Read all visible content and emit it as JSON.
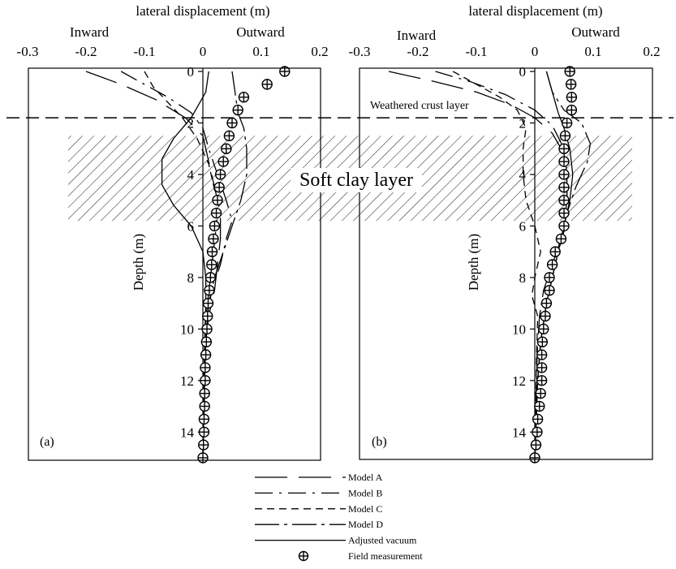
{
  "chart_data": [
    {
      "type": "line",
      "panel_label": "(a)",
      "title": "lateral displacement (m)",
      "direction_labels": {
        "left": "Inward",
        "right": "Outward"
      },
      "xlabel": "lateral displacement (m)",
      "ylabel": "Depth (m)",
      "xlim": [
        -0.3,
        0.2
      ],
      "ylim": [
        0,
        15
      ],
      "y_inverted": true,
      "x_ticks": [
        "-0.3",
        "-0.2",
        "-0.1",
        "0",
        "0.1",
        "0.2"
      ],
      "y_ticks": [
        "0",
        "2",
        "4",
        "6",
        "8",
        "10",
        "12",
        "14"
      ],
      "band": {
        "label": "Soft clay layer",
        "y_range": [
          2.5,
          5.8
        ]
      },
      "crust_line_depth": 1.8,
      "series": [
        {
          "name": "Model A",
          "dash": "long-dash",
          "points": [
            [
              -0.2,
              0
            ],
            [
              -0.14,
              0.5
            ],
            [
              -0.08,
              1.1
            ],
            [
              -0.03,
              1.8
            ],
            [
              0.0,
              2.5
            ],
            [
              0.01,
              3.5
            ],
            [
              0.02,
              4.5
            ],
            [
              0.03,
              5.5
            ],
            [
              0.03,
              6.5
            ],
            [
              0.025,
              7.5
            ],
            [
              0.02,
              8.5
            ],
            [
              0.01,
              9.5
            ],
            [
              0.005,
              10.5
            ],
            [
              0.003,
              12
            ],
            [
              0.002,
              13.5
            ],
            [
              0.0,
              15
            ]
          ]
        },
        {
          "name": "Model B",
          "dash": "dash-dot",
          "points": [
            [
              -0.14,
              0
            ],
            [
              -0.1,
              0.5
            ],
            [
              -0.06,
              1.0
            ],
            [
              -0.02,
              1.6
            ],
            [
              0.0,
              2.2
            ],
            [
              0.01,
              3.0
            ],
            [
              0.025,
              4.0
            ],
            [
              0.04,
              5.0
            ],
            [
              0.05,
              5.8
            ],
            [
              0.04,
              6.5
            ],
            [
              0.03,
              7.5
            ],
            [
              0.015,
              8.5
            ],
            [
              0.008,
              9.5
            ],
            [
              0.004,
              11
            ],
            [
              0.002,
              13
            ],
            [
              0.0,
              15
            ]
          ]
        },
        {
          "name": "Model C",
          "dash": "short-dash",
          "points": [
            [
              -0.1,
              0
            ],
            [
              -0.085,
              0.6
            ],
            [
              -0.06,
              1.2
            ],
            [
              -0.035,
              1.8
            ],
            [
              -0.01,
              2.6
            ],
            [
              0.01,
              3.6
            ],
            [
              0.02,
              4.6
            ],
            [
              0.025,
              5.6
            ],
            [
              0.02,
              6.6
            ],
            [
              0.015,
              7.6
            ],
            [
              0.01,
              8.6
            ],
            [
              0.005,
              9.6
            ],
            [
              0.003,
              11
            ],
            [
              0.001,
              13
            ],
            [
              0.0,
              15
            ]
          ]
        },
        {
          "name": "Model D",
          "dash": "dash-dot-long",
          "points": [
            [
              0.05,
              0
            ],
            [
              0.055,
              0.8
            ],
            [
              0.06,
              1.6
            ],
            [
              0.07,
              2.2
            ],
            [
              0.075,
              3.0
            ],
            [
              0.075,
              4.0
            ],
            [
              0.065,
              5.0
            ],
            [
              0.05,
              6.0
            ],
            [
              0.035,
              7.0
            ],
            [
              0.02,
              8.0
            ],
            [
              0.01,
              9.0
            ],
            [
              0.005,
              10.5
            ],
            [
              0.002,
              12.5
            ],
            [
              0.0,
              15
            ]
          ]
        },
        {
          "name": "Adjusted vacuum",
          "dash": "solid",
          "points": [
            [
              0.01,
              0
            ],
            [
              0.005,
              0.8
            ],
            [
              -0.02,
              1.8
            ],
            [
              -0.05,
              2.6
            ],
            [
              -0.07,
              3.4
            ],
            [
              -0.07,
              4.4
            ],
            [
              -0.05,
              5.2
            ],
            [
              -0.02,
              6.0
            ],
            [
              0.0,
              7.0
            ],
            [
              0.005,
              8.0
            ],
            [
              0.005,
              9.0
            ],
            [
              0.003,
              10.5
            ],
            [
              0.001,
              12.5
            ],
            [
              0.0,
              15
            ]
          ]
        }
      ],
      "field_measurement": [
        [
          0.14,
          0
        ],
        [
          0.11,
          0.5
        ],
        [
          0.07,
          1.0
        ],
        [
          0.06,
          1.5
        ],
        [
          0.05,
          2.0
        ],
        [
          0.045,
          2.5
        ],
        [
          0.04,
          3.0
        ],
        [
          0.035,
          3.5
        ],
        [
          0.03,
          4.0
        ],
        [
          0.028,
          4.5
        ],
        [
          0.025,
          5.0
        ],
        [
          0.023,
          5.5
        ],
        [
          0.02,
          6.0
        ],
        [
          0.018,
          6.5
        ],
        [
          0.016,
          7.0
        ],
        [
          0.015,
          7.5
        ],
        [
          0.013,
          8.0
        ],
        [
          0.011,
          8.5
        ],
        [
          0.009,
          9.0
        ],
        [
          0.008,
          9.5
        ],
        [
          0.007,
          10.0
        ],
        [
          0.006,
          10.5
        ],
        [
          0.005,
          11.0
        ],
        [
          0.004,
          11.5
        ],
        [
          0.004,
          12.0
        ],
        [
          0.003,
          12.5
        ],
        [
          0.003,
          13.0
        ],
        [
          0.002,
          13.5
        ],
        [
          0.002,
          14.0
        ],
        [
          0.001,
          14.5
        ],
        [
          0.0,
          15.0
        ]
      ]
    },
    {
      "type": "line",
      "panel_label": "(b)",
      "title": "lateral displacement (m)",
      "direction_labels": {
        "left": "Inward",
        "right": "Outward"
      },
      "xlabel": "lateral displacement (m)",
      "ylabel": "Depth (m)",
      "xlim": [
        -0.3,
        0.2
      ],
      "ylim": [
        0,
        15
      ],
      "y_inverted": true,
      "x_ticks": [
        "-0.3",
        "-0.2",
        "-0.1",
        "0",
        "0.1",
        "0.2"
      ],
      "y_ticks": [
        "0",
        "2",
        "4",
        "6",
        "8",
        "10",
        "12",
        "14"
      ],
      "band": {
        "label": "Soft clay layer",
        "y_range": [
          2.5,
          5.8
        ]
      },
      "crust_line_depth": 1.8,
      "crust_label": "Weathered crust layer",
      "series": [
        {
          "name": "Model A",
          "dash": "long-dash",
          "points": [
            [
              -0.25,
              0
            ],
            [
              -0.17,
              0.4
            ],
            [
              -0.1,
              0.8
            ],
            [
              -0.04,
              1.3
            ],
            [
              0.0,
              1.8
            ],
            [
              0.03,
              2.4
            ],
            [
              0.05,
              3.2
            ],
            [
              0.055,
              4.2
            ],
            [
              0.055,
              5.2
            ],
            [
              0.05,
              6.2
            ],
            [
              0.04,
              7.0
            ],
            [
              0.03,
              8.0
            ],
            [
              0.02,
              9.0
            ],
            [
              0.01,
              10.5
            ],
            [
              0.005,
              12
            ],
            [
              0.0,
              15
            ]
          ]
        },
        {
          "name": "Model B",
          "dash": "dash-dot",
          "points": [
            [
              -0.17,
              0
            ],
            [
              -0.11,
              0.4
            ],
            [
              -0.05,
              0.9
            ],
            [
              0.0,
              1.5
            ],
            [
              0.03,
              2.1
            ],
            [
              0.05,
              3.0
            ],
            [
              0.055,
              4.0
            ],
            [
              0.055,
              5.0
            ],
            [
              0.05,
              6.0
            ],
            [
              0.04,
              7.0
            ],
            [
              0.03,
              8.0
            ],
            [
              0.02,
              9.0
            ],
            [
              0.01,
              10.5
            ],
            [
              0.005,
              12
            ],
            [
              0.0,
              15
            ]
          ]
        },
        {
          "name": "Model C",
          "dash": "short-dash",
          "points": [
            [
              -0.14,
              0
            ],
            [
              -0.1,
              0.5
            ],
            [
              -0.06,
              1.0
            ],
            [
              -0.03,
              1.5
            ],
            [
              -0.015,
              2.2
            ],
            [
              -0.02,
              3.0
            ],
            [
              -0.02,
              4.0
            ],
            [
              -0.015,
              5.0
            ],
            [
              0.0,
              6.0
            ],
            [
              0.01,
              7.0
            ],
            [
              0.0,
              8.0
            ],
            [
              -0.005,
              8.7
            ],
            [
              0.005,
              9.5
            ],
            [
              0.003,
              11
            ],
            [
              0.0,
              15
            ]
          ]
        },
        {
          "name": "Model D",
          "dash": "dash-dot-long",
          "points": [
            [
              0.02,
              0
            ],
            [
              0.03,
              0.8
            ],
            [
              0.05,
              1.5
            ],
            [
              0.08,
              2.0
            ],
            [
              0.095,
              2.8
            ],
            [
              0.09,
              3.5
            ],
            [
              0.07,
              4.5
            ],
            [
              0.055,
              5.5
            ],
            [
              0.045,
              6.5
            ],
            [
              0.03,
              7.5
            ],
            [
              0.015,
              8.5
            ],
            [
              0.008,
              9.5
            ],
            [
              0.004,
              11
            ],
            [
              0.0,
              15
            ]
          ]
        },
        {
          "name": "Adjusted vacuum",
          "dash": "solid",
          "points": [
            [
              0.02,
              0
            ],
            [
              0.03,
              0.8
            ],
            [
              0.04,
              1.6
            ],
            [
              0.05,
              2.2
            ],
            [
              0.06,
              3.0
            ],
            [
              0.065,
              4.0
            ],
            [
              0.06,
              5.0
            ],
            [
              0.05,
              6.0
            ],
            [
              0.04,
              7.0
            ],
            [
              0.03,
              8.0
            ],
            [
              0.02,
              9.0
            ],
            [
              0.01,
              10.5
            ],
            [
              0.005,
              12
            ],
            [
              0.0,
              15
            ]
          ]
        }
      ],
      "field_measurement": [
        [
          0.06,
          0
        ],
        [
          0.062,
          0.5
        ],
        [
          0.063,
          1.0
        ],
        [
          0.063,
          1.5
        ],
        [
          0.055,
          2.0
        ],
        [
          0.052,
          2.5
        ],
        [
          0.05,
          3.0
        ],
        [
          0.05,
          3.5
        ],
        [
          0.05,
          4.0
        ],
        [
          0.05,
          4.5
        ],
        [
          0.05,
          5.0
        ],
        [
          0.05,
          5.5
        ],
        [
          0.05,
          6.0
        ],
        [
          0.045,
          6.5
        ],
        [
          0.035,
          7.0
        ],
        [
          0.03,
          7.5
        ],
        [
          0.025,
          8.0
        ],
        [
          0.025,
          8.5
        ],
        [
          0.02,
          9.0
        ],
        [
          0.018,
          9.5
        ],
        [
          0.015,
          10.0
        ],
        [
          0.013,
          10.5
        ],
        [
          0.012,
          11.0
        ],
        [
          0.012,
          11.5
        ],
        [
          0.012,
          12.0
        ],
        [
          0.01,
          12.5
        ],
        [
          0.008,
          13.0
        ],
        [
          0.005,
          13.5
        ],
        [
          0.004,
          14.0
        ],
        [
          0.002,
          14.5
        ],
        [
          0.0,
          15.0
        ]
      ]
    }
  ],
  "legend": {
    "items": [
      {
        "label": "Model A",
        "dash": "long-dash"
      },
      {
        "label": "Model B",
        "dash": "dash-dot"
      },
      {
        "label": "Model C",
        "dash": "short-dash"
      },
      {
        "label": "Model D",
        "dash": "dash-dot-long"
      },
      {
        "label": "Adjusted vacuum",
        "dash": "solid"
      },
      {
        "label": "Field measurement",
        "dash": "marker"
      }
    ]
  },
  "colors": {
    "ink": "#000000",
    "background": "#ffffff"
  }
}
